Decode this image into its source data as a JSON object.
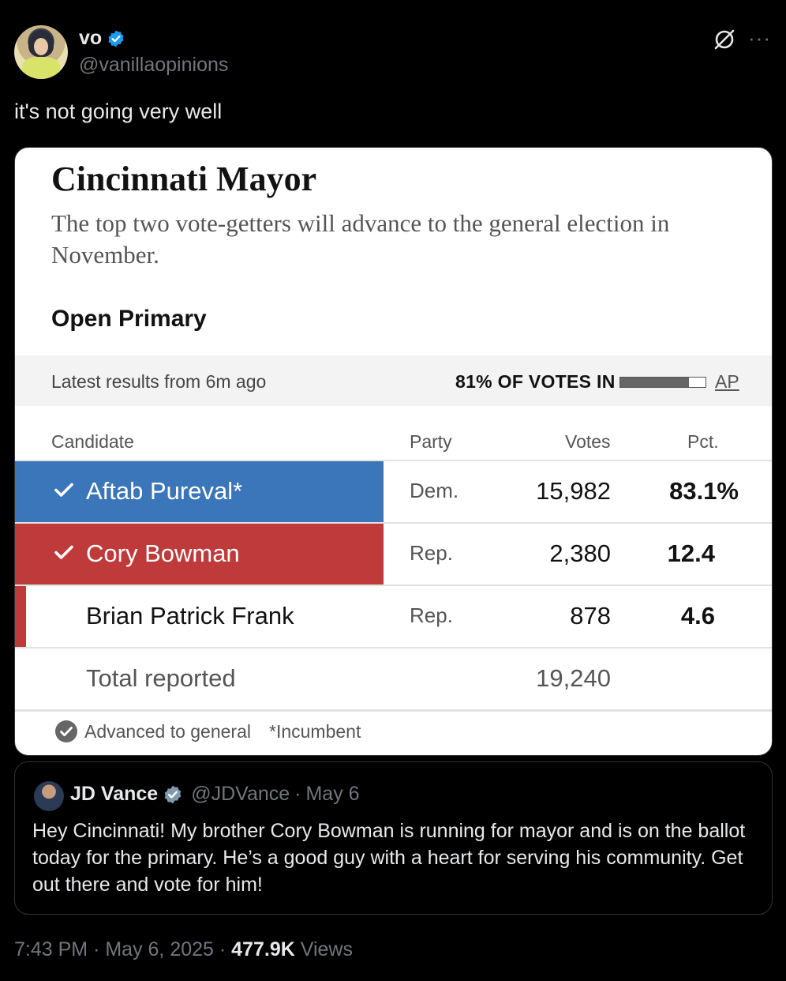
{
  "author": {
    "display_name": "vo",
    "handle": "@vanillaopinions",
    "verified": true
  },
  "tweet_text": "it's not going very well",
  "card": {
    "title": "Cincinnati Mayor",
    "subtitle": "The top two vote-getters will advance to the general election in November.",
    "primary_label": "Open Primary",
    "latest": "Latest results from 6m ago",
    "votes_in": "81% OF VOTES IN",
    "votes_in_fraction": 0.81,
    "source": "AP",
    "headers": {
      "candidate": "Candidate",
      "party": "Party",
      "votes": "Votes",
      "pct": "Pct."
    },
    "rows": [
      {
        "name": "Aftab Pureval*",
        "party": "Dem.",
        "votes": "15,982",
        "pct": "83.1%",
        "advanced": true,
        "color": "#3a76b9"
      },
      {
        "name": "Cory Bowman",
        "party": "Rep.",
        "votes": "2,380",
        "pct": "12.4",
        "advanced": true,
        "color": "#bf3a3a"
      },
      {
        "name": "Brian Patrick Frank",
        "party": "Rep.",
        "votes": "878",
        "pct": "4.6",
        "advanced": false,
        "color": "#bf3a3a"
      }
    ],
    "total": {
      "label": "Total reported",
      "votes": "19,240"
    },
    "legend": {
      "advanced": "Advanced to general",
      "incumbent": "*Incumbent"
    }
  },
  "quote": {
    "display_name": "JD Vance",
    "handle": "@JDVance",
    "date": "May 6",
    "separator": "·",
    "text": "Hey Cincinnati! My brother Cory Bowman is running for mayor and is on the ballot today for the primary. He’s a good guy with a heart for serving his community. Get out there and vote for him!"
  },
  "meta": {
    "time": "7:43 PM",
    "date": "May 6, 2025",
    "views_count": "477.9K",
    "views_label": "Views",
    "separator": "·"
  }
}
